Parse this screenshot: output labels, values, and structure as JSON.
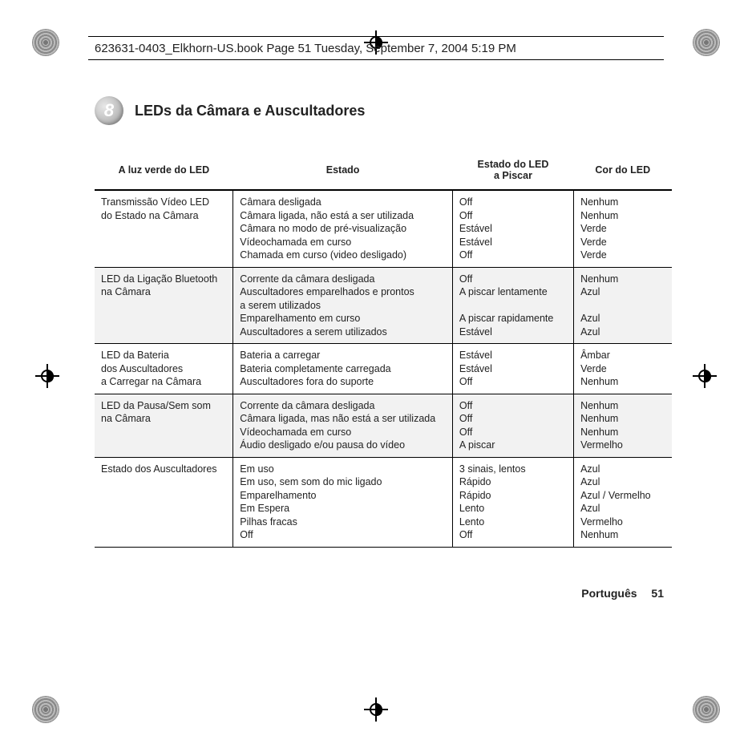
{
  "header_runner": "623631-0403_Elkhorn-US.book  Page 51  Tuesday, September 7, 2004  5:19 PM",
  "badge_number": "8",
  "section_title": "LEDs da Câmara e Auscultadores",
  "table": {
    "headers": {
      "col1": "A luz verde do LED",
      "col2": "Estado",
      "col3_line1": "Estado do LED",
      "col3_line2": "a Piscar",
      "col4": "Cor do LED"
    },
    "rows": [
      {
        "c1": [
          "Transmissão Vídeo LED",
          "do Estado na Câmara"
        ],
        "c2": [
          "Câmara desligada",
          "Câmara ligada, não está a ser utilizada",
          "Câmara no modo de pré-visualização",
          "Vídeochamada em curso",
          "Chamada em curso (video desligado)"
        ],
        "c3": [
          "Off",
          "Off",
          "Estável",
          "Estável",
          "Off"
        ],
        "c4": [
          "Nenhum",
          "Nenhum",
          "Verde",
          "Verde",
          "Verde"
        ]
      },
      {
        "c1": [
          "LED da Ligação Bluetooth",
          "na Câmara"
        ],
        "c2": [
          "Corrente da câmara desligada",
          "Auscultadores emparelhados e prontos",
          "a serem utilizados",
          "Emparelhamento em curso",
          "Auscultadores a serem utilizados"
        ],
        "c3": [
          "Off",
          "A piscar lentamente",
          "",
          "A piscar rapidamente",
          "Estável"
        ],
        "c4": [
          "Nenhum",
          "Azul",
          "",
          "Azul",
          "Azul"
        ]
      },
      {
        "c1": [
          "LED da Bateria",
          "dos Auscultadores",
          "a Carregar na Câmara"
        ],
        "c2": [
          "Bateria a carregar",
          "Bateria completamente carregada",
          "Auscultadores fora do suporte"
        ],
        "c3": [
          "Estável",
          "Estável",
          "Off"
        ],
        "c4": [
          "Âmbar",
          "Verde",
          "Nenhum"
        ]
      },
      {
        "c1": [
          "LED da Pausa/Sem som",
          "na Câmara"
        ],
        "c2": [
          "Corrente da câmara desligada",
          "Câmara ligada, mas não está a ser utilizada",
          "Vídeochamada em curso",
          "Áudio desligado e/ou pausa do vídeo"
        ],
        "c3": [
          "Off",
          "Off",
          "Off",
          "A piscar"
        ],
        "c4": [
          "Nenhum",
          "Nenhum",
          "Nenhum",
          "Vermelho"
        ]
      },
      {
        "c1": [
          "Estado dos Auscultadores"
        ],
        "c2": [
          "Em uso",
          "Em uso, sem som do mic ligado",
          "Emparelhamento",
          "Em Espera",
          "Pilhas fracas",
          "Off"
        ],
        "c3": [
          "3 sinais, lentos",
          "Rápido",
          "Rápido",
          "Lento",
          "Lento",
          "Off"
        ],
        "c4": [
          "Azul",
          "Azul",
          "Azul / Vermelho",
          "Azul",
          "Vermelho",
          "Nenhum"
        ]
      }
    ]
  },
  "footer": {
    "language": "Português",
    "page": "51"
  }
}
